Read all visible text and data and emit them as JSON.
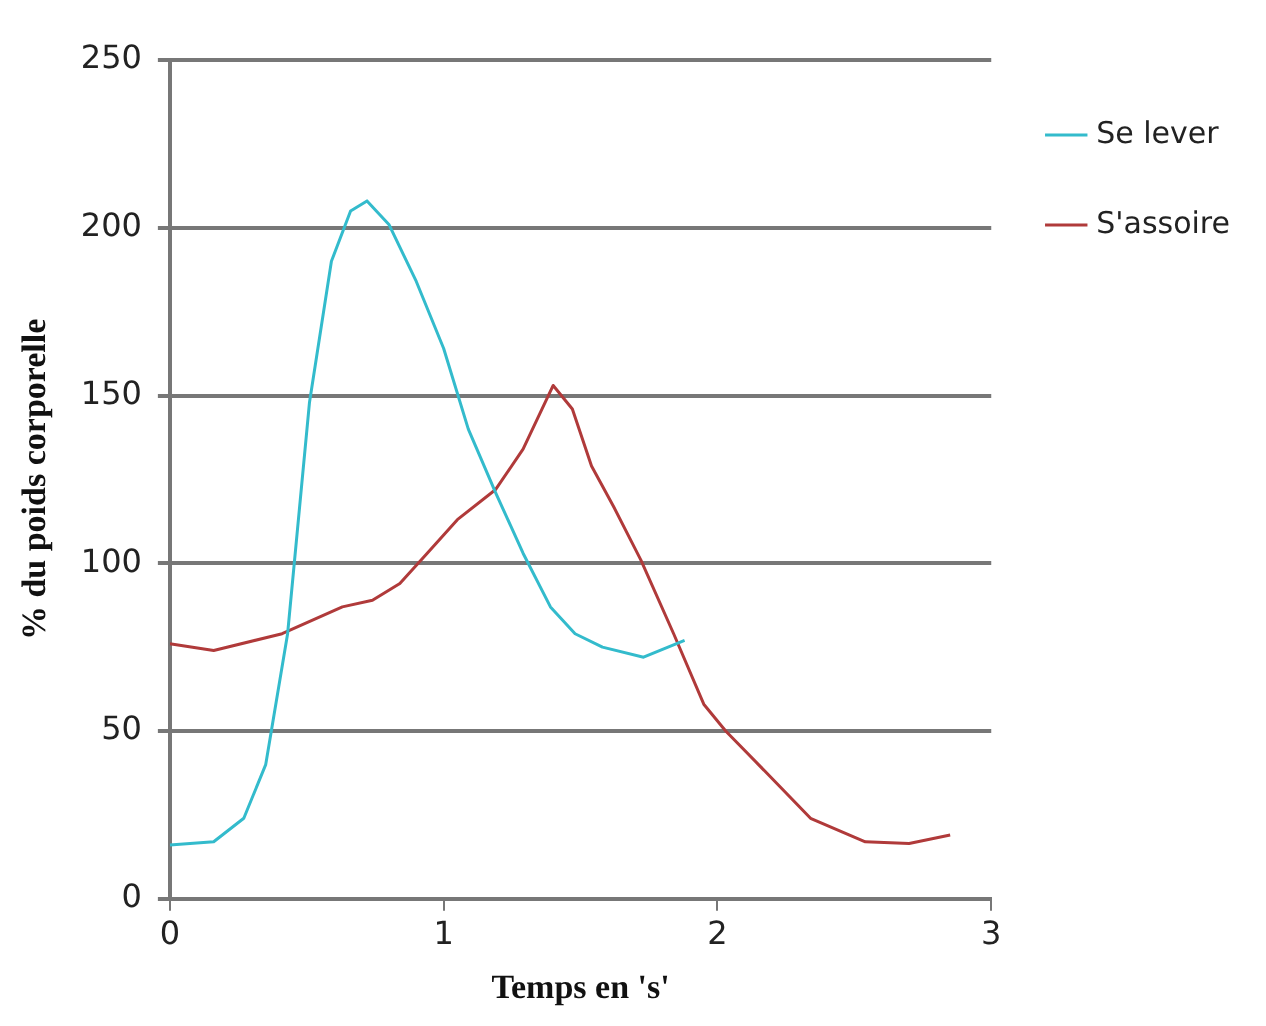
{
  "chart_data": {
    "type": "line",
    "xlabel": "Temps en 's'",
    "ylabel": "% du poids corporelle",
    "xlim": [
      0,
      3
    ],
    "xticks": [
      0,
      1,
      2,
      3
    ],
    "ylim": [
      0,
      250
    ],
    "yticks": [
      0,
      50,
      100,
      150,
      200,
      250
    ],
    "grid": "y",
    "legend": "top right",
    "marker": "none",
    "series": [
      {
        "name": "Se lever",
        "color": "#33bbcc",
        "x": [
          0,
          0.16,
          0.27,
          0.35,
          0.43,
          0.51,
          0.59,
          0.66,
          0.72,
          0.8,
          0.9,
          1.0,
          1.09,
          1.19,
          1.29,
          1.39,
          1.48,
          1.58,
          1.73,
          1.88
        ],
        "values": [
          16,
          17,
          24,
          40,
          79,
          148,
          190,
          205,
          208,
          201,
          184,
          164,
          140,
          121,
          103,
          87,
          79,
          75,
          72,
          77
        ]
      },
      {
        "name": "S'assoire",
        "color": "#b03a3a",
        "x": [
          0,
          0.16,
          0.41,
          0.63,
          0.74,
          0.84,
          0.94,
          1.05,
          1.19,
          1.29,
          1.4,
          1.47,
          1.54,
          1.62,
          1.72,
          1.84,
          1.95,
          2.03,
          2.15,
          2.34,
          2.54,
          2.7,
          2.85
        ],
        "values": [
          76,
          74,
          79,
          87,
          89,
          94,
          103,
          113,
          122,
          134,
          153,
          146,
          129,
          117,
          101,
          79,
          58,
          50,
          40,
          24,
          17,
          16.5,
          19
        ]
      }
    ]
  }
}
